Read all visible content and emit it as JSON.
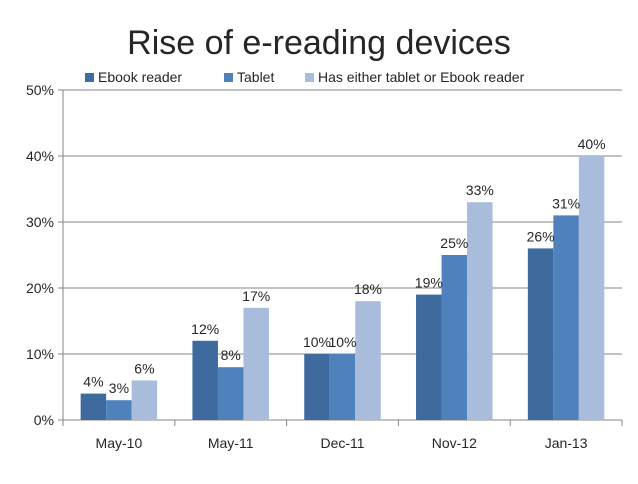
{
  "chart_data": {
    "type": "bar",
    "title": "Rise of e-reading devices",
    "xlabel": "",
    "ylabel": "",
    "ylim": [
      0,
      50
    ],
    "yticks": [
      0,
      10,
      20,
      30,
      40,
      50
    ],
    "ytick_labels": [
      "0%",
      "10%",
      "20%",
      "30%",
      "40%",
      "50%"
    ],
    "grid": true,
    "legend_position": "top",
    "categories": [
      "May-10",
      "May-11",
      "Dec-11",
      "Nov-12",
      "Jan-13"
    ],
    "series": [
      {
        "name": "Ebook reader",
        "color": "#3F6A9E",
        "values": [
          4,
          12,
          10,
          19,
          26
        ],
        "labels": [
          "4%",
          "12%",
          "10%",
          "19%",
          "26%"
        ]
      },
      {
        "name": "Tablet",
        "color": "#4F81BD",
        "values": [
          3,
          8,
          10,
          25,
          31
        ],
        "labels": [
          "3%",
          "8%",
          "10%",
          "25%",
          "31%"
        ]
      },
      {
        "name": "Has either tablet or Ebook reader",
        "color": "#A9BCDC",
        "values": [
          6,
          17,
          18,
          33,
          40
        ],
        "labels": [
          "6%",
          "17%",
          "18%",
          "33%",
          "40%"
        ]
      }
    ]
  }
}
